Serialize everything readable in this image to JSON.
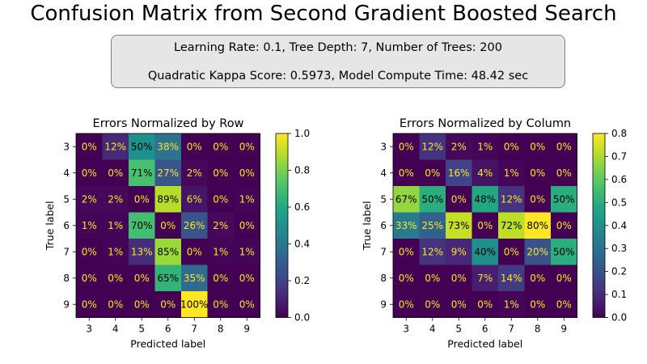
{
  "title": "Confusion Matrix from Second Gradient Boosted Search",
  "info": {
    "line1": "Learning Rate: 0.1, Tree Depth: 7, Number of Trees: 200",
    "line2": "Quadratic Kappa Score: 0.5973,  Model Compute Time: 48.42 sec"
  },
  "chart_data": [
    {
      "type": "heatmap",
      "title": "Errors Normalized by Row",
      "xlabel": "Predicted label",
      "ylabel": "True label",
      "x_categories": [
        "3",
        "4",
        "5",
        "6",
        "7",
        "8",
        "9"
      ],
      "y_categories": [
        "3",
        "4",
        "5",
        "6",
        "7",
        "8",
        "9"
      ],
      "values": [
        [
          0,
          0.12,
          0.5,
          0.38,
          0,
          0,
          0
        ],
        [
          0,
          0,
          0.71,
          0.27,
          0.02,
          0,
          0
        ],
        [
          0.02,
          0.02,
          0,
          0.89,
          0.06,
          0,
          0.01
        ],
        [
          0.01,
          0.01,
          0.7,
          0,
          0.26,
          0.02,
          0
        ],
        [
          0,
          0.01,
          0.13,
          0.85,
          0,
          0.01,
          0.01
        ],
        [
          0,
          0,
          0,
          0.65,
          0.35,
          0,
          0
        ],
        [
          0,
          0,
          0,
          0,
          1.0,
          0,
          0
        ]
      ],
      "cell_labels": [
        [
          "0%",
          "12%",
          "50%",
          "38%",
          "0%",
          "0%",
          "0%"
        ],
        [
          "0%",
          "0%",
          "71%",
          "27%",
          "2%",
          "0%",
          "0%"
        ],
        [
          "2%",
          "2%",
          "0%",
          "89%",
          "6%",
          "0%",
          "1%"
        ],
        [
          "1%",
          "1%",
          "70%",
          "0%",
          "26%",
          "2%",
          "0%"
        ],
        [
          "0%",
          "1%",
          "13%",
          "85%",
          "0%",
          "1%",
          "1%"
        ],
        [
          "0%",
          "0%",
          "0%",
          "65%",
          "35%",
          "0%",
          "0%"
        ],
        [
          "0%",
          "0%",
          "0%",
          "0%",
          "100%",
          "0%",
          "0%"
        ]
      ],
      "colorbar": {
        "colormap": "viridis",
        "range": [
          0,
          1.0
        ],
        "ticks": [
          "0.0",
          "0.2",
          "0.4",
          "0.6",
          "0.8",
          "1.0"
        ]
      }
    },
    {
      "type": "heatmap",
      "title": "Errors Normalized by Column",
      "xlabel": "Predicted label",
      "ylabel": "True label",
      "x_categories": [
        "3",
        "4",
        "5",
        "6",
        "7",
        "8",
        "9"
      ],
      "y_categories": [
        "3",
        "4",
        "5",
        "6",
        "7",
        "8",
        "9"
      ],
      "values": [
        [
          0,
          0.12,
          0.02,
          0.01,
          0,
          0,
          0
        ],
        [
          0,
          0,
          0.16,
          0.04,
          0.01,
          0,
          0
        ],
        [
          0.67,
          0.5,
          0,
          0.48,
          0.12,
          0,
          0.5
        ],
        [
          0.33,
          0.25,
          0.73,
          0,
          0.72,
          0.8,
          0
        ],
        [
          0,
          0.12,
          0.09,
          0.4,
          0,
          0.2,
          0.5
        ],
        [
          0,
          0,
          0,
          0.07,
          0.14,
          0,
          0
        ],
        [
          0,
          0,
          0,
          0,
          0.01,
          0,
          0
        ]
      ],
      "cell_labels": [
        [
          "0%",
          "12%",
          "2%",
          "1%",
          "0%",
          "0%",
          "0%"
        ],
        [
          "0%",
          "0%",
          "16%",
          "4%",
          "1%",
          "0%",
          "0%"
        ],
        [
          "67%",
          "50%",
          "0%",
          "48%",
          "12%",
          "0%",
          "50%"
        ],
        [
          "33%",
          "25%",
          "73%",
          "0%",
          "72%",
          "80%",
          "0%"
        ],
        [
          "0%",
          "12%",
          "9%",
          "40%",
          "0%",
          "20%",
          "50%"
        ],
        [
          "0%",
          "0%",
          "0%",
          "7%",
          "14%",
          "0%",
          "0%"
        ],
        [
          "0%",
          "0%",
          "0%",
          "0%",
          "1%",
          "0%",
          "0%"
        ]
      ],
      "colorbar": {
        "colormap": "viridis",
        "range": [
          0,
          0.8
        ],
        "ticks": [
          "0.0",
          "0.1",
          "0.2",
          "0.3",
          "0.4",
          "0.5",
          "0.6",
          "0.7",
          "0.8"
        ]
      }
    }
  ]
}
